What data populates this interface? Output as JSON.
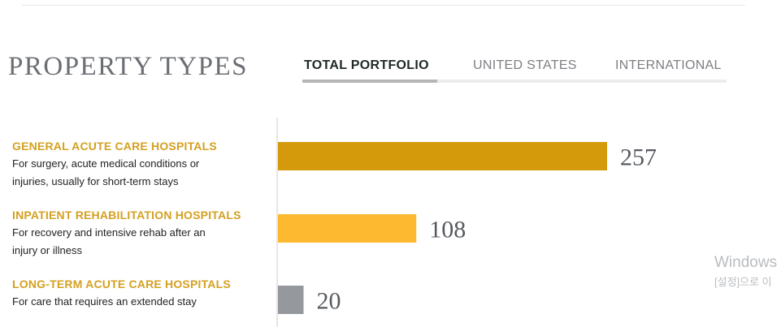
{
  "section": {
    "title": "PROPERTY TYPES"
  },
  "tabs": [
    {
      "label": "TOTAL PORTFOLIO",
      "active": true
    },
    {
      "label": "UNITED STATES",
      "active": false
    },
    {
      "label": "INTERNATIONAL",
      "active": false
    }
  ],
  "rows": [
    {
      "name": "GENERAL ACUTE CARE HOSPITALS",
      "desc": "For surgery, acute medical conditions or injuries, usually for short-term stays"
    },
    {
      "name": "INPATIENT REHABILITATION HOSPITALS",
      "desc": "For recovery and intensive rehab after an injury or illness"
    },
    {
      "name": "LONG-TERM ACUTE CARE HOSPITALS",
      "desc": "For care that requires an extended stay"
    }
  ],
  "chart_data": {
    "type": "bar",
    "orientation": "horizontal",
    "categories": [
      "GENERAL ACUTE CARE HOSPITALS",
      "INPATIENT REHABILITATION HOSPITALS",
      "LONG-TERM ACUTE CARE HOSPITALS"
    ],
    "values": [
      257,
      108,
      20
    ],
    "colors": [
      "#d49a0c",
      "#fdb92f",
      "#95989d"
    ],
    "label_color": "#d4a021",
    "value_label_color": "#565a5f",
    "axis_color": "#cccccc"
  },
  "watermark": {
    "line1": "Windows",
    "line2": "[설정]으로 이"
  }
}
